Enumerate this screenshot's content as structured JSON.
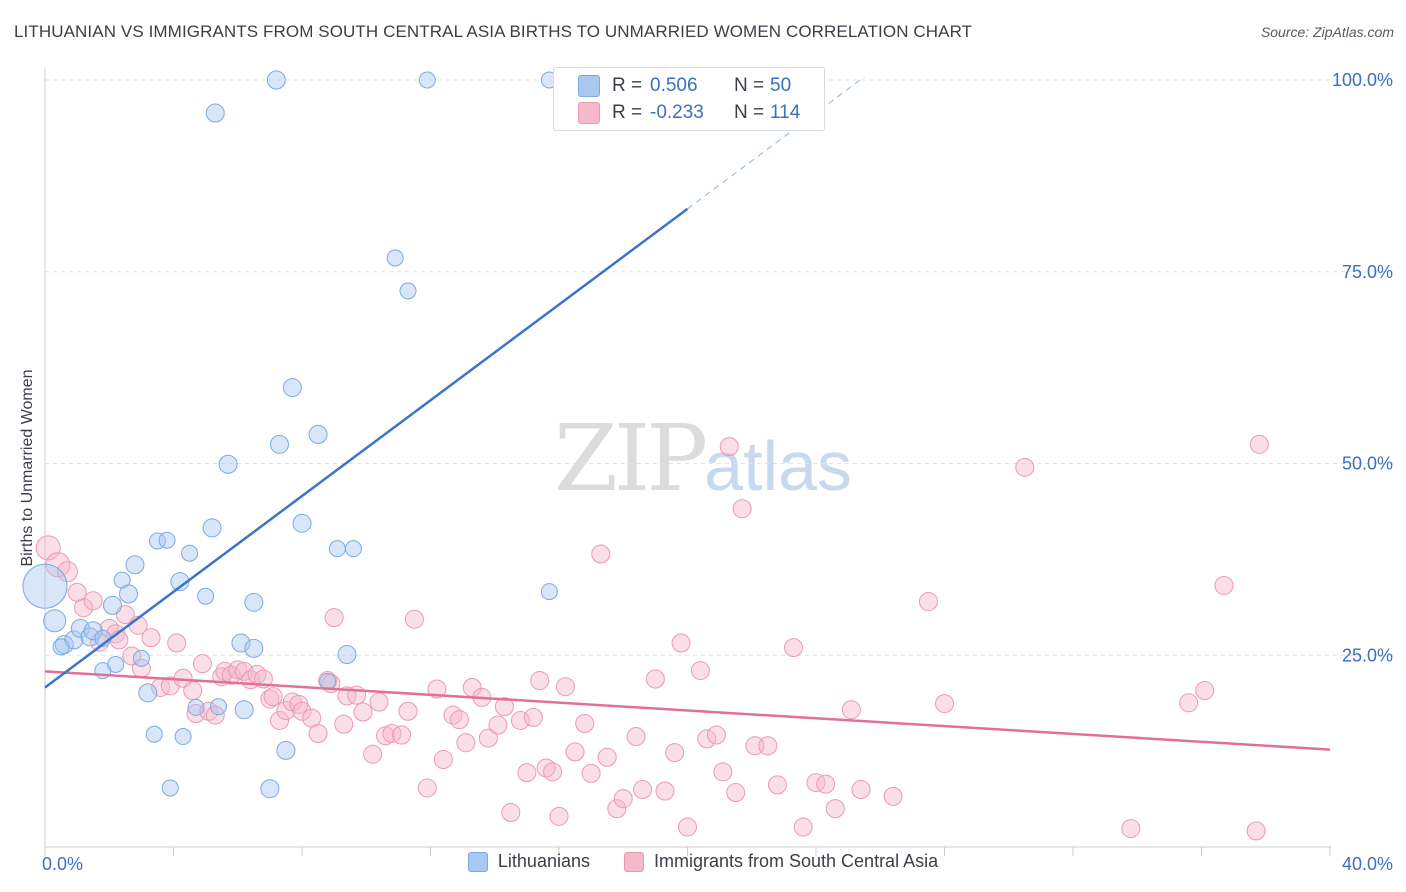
{
  "title": "LITHUANIAN VS IMMIGRANTS FROM SOUTH CENTRAL ASIA BIRTHS TO UNMARRIED WOMEN CORRELATION CHART",
  "source": "Source: ZipAtlas.com",
  "watermark": {
    "zip": "ZIP",
    "atlas": "atlas"
  },
  "correlation_box": {
    "rows": [
      {
        "r_label": "R =",
        "r_value": "0.506",
        "n_label": "N =",
        "n_value": "50",
        "color": "#a9c8f0"
      },
      {
        "r_label": "R =",
        "r_value": "-0.233",
        "n_label": "N =",
        "n_value": "114",
        "color": "#f5b9cb"
      }
    ]
  },
  "legend": {
    "items": [
      {
        "label": "Lithuanians",
        "color": "#a9c8f0"
      },
      {
        "label": "Immigrants from South Central Asia",
        "color": "#f5b9cb"
      }
    ]
  },
  "chart_data": {
    "type": "scatter",
    "title": "LITHUANIAN VS IMMIGRANTS FROM SOUTH CENTRAL ASIA BIRTHS TO UNMARRIED WOMEN CORRELATION CHART",
    "xlabel": "",
    "ylabel": "Births to Unmarried Women",
    "xlim": [
      0,
      40
    ],
    "ylim": [
      0,
      100
    ],
    "x_tick_labels": [
      "0.0%",
      "40.0%"
    ],
    "y_tick_labels": [
      "25.0%",
      "50.0%",
      "75.0%",
      "100.0%"
    ],
    "y_ticks": [
      25,
      50,
      75,
      100
    ],
    "grid": true,
    "legend_position": "bottom",
    "colors": {
      "blue_fill": "#a9c8f0",
      "blue_stroke": "#7aaae6",
      "blue_line": "#3b74c9",
      "pink_fill": "#f5b9cb",
      "pink_stroke": "#ec99b2",
      "pink_line": "#e0709a",
      "axis_text": "#3b6fc4"
    },
    "series": [
      {
        "name": "Lithuanians",
        "trend": {
          "x": [
            0,
            20
          ],
          "y": [
            20.8,
            83.2
          ],
          "dashed_extension_to": [
            25.5,
            100.4
          ]
        },
        "points": [
          [
            0.0,
            34.0,
            22
          ],
          [
            0.3,
            29.5,
            11
          ],
          [
            0.6,
            26.4,
            9
          ],
          [
            0.9,
            27.0,
            9
          ],
          [
            1.1,
            28.5,
            9
          ],
          [
            1.4,
            27.4,
            9
          ],
          [
            1.5,
            28.2,
            9
          ],
          [
            1.8,
            27.2,
            8
          ],
          [
            1.8,
            23.0,
            8
          ],
          [
            2.1,
            31.5,
            9
          ],
          [
            2.2,
            23.8,
            8
          ],
          [
            2.4,
            34.8,
            8
          ],
          [
            2.6,
            33.0,
            9
          ],
          [
            2.8,
            36.8,
            9
          ],
          [
            3.0,
            24.6,
            8
          ],
          [
            3.2,
            20.1,
            9
          ],
          [
            3.4,
            14.7,
            8
          ],
          [
            3.5,
            39.9,
            8
          ],
          [
            3.8,
            40.0,
            8
          ],
          [
            3.9,
            7.7,
            8
          ],
          [
            4.2,
            34.6,
            9
          ],
          [
            4.3,
            14.4,
            8
          ],
          [
            4.5,
            38.3,
            8
          ],
          [
            4.7,
            18.2,
            8
          ],
          [
            5.0,
            32.7,
            8
          ],
          [
            5.2,
            41.6,
            9
          ],
          [
            5.3,
            95.7,
            9
          ],
          [
            5.4,
            18.3,
            8
          ],
          [
            5.7,
            49.9,
            9
          ],
          [
            6.1,
            26.6,
            9
          ],
          [
            6.2,
            17.9,
            9
          ],
          [
            6.5,
            31.9,
            9
          ],
          [
            6.5,
            25.9,
            9
          ],
          [
            7.0,
            7.6,
            9
          ],
          [
            7.2,
            100.0,
            9
          ],
          [
            7.3,
            52.5,
            9
          ],
          [
            7.5,
            12.6,
            9
          ],
          [
            7.7,
            59.9,
            9
          ],
          [
            8.0,
            42.2,
            9
          ],
          [
            8.5,
            53.8,
            9
          ],
          [
            8.8,
            21.6,
            8
          ],
          [
            9.1,
            38.9,
            8
          ],
          [
            9.4,
            25.1,
            9
          ],
          [
            9.6,
            38.9,
            8
          ],
          [
            10.9,
            76.8,
            8
          ],
          [
            11.3,
            72.5,
            8
          ],
          [
            11.9,
            100.0,
            8
          ],
          [
            15.7,
            100.0,
            8
          ],
          [
            15.7,
            33.3,
            8
          ],
          [
            0.5,
            26.1,
            8
          ]
        ]
      },
      {
        "name": "Immigrants from South Central Asia",
        "trend": {
          "x": [
            0,
            40
          ],
          "y": [
            22.9,
            12.7
          ]
        },
        "points": [
          [
            0.1,
            39.0,
            12
          ],
          [
            0.4,
            36.8,
            12
          ],
          [
            0.7,
            35.9,
            10
          ],
          [
            1.0,
            33.2,
            9
          ],
          [
            1.2,
            31.2,
            9
          ],
          [
            1.5,
            32.1,
            9
          ],
          [
            1.7,
            26.7,
            9
          ],
          [
            2.0,
            28.5,
            9
          ],
          [
            2.2,
            27.8,
            9
          ],
          [
            2.3,
            27.0,
            9
          ],
          [
            2.5,
            30.3,
            9
          ],
          [
            2.7,
            24.9,
            9
          ],
          [
            2.9,
            28.9,
            9
          ],
          [
            3.0,
            23.3,
            9
          ],
          [
            3.3,
            27.3,
            9
          ],
          [
            3.6,
            20.8,
            9
          ],
          [
            3.9,
            21.0,
            9
          ],
          [
            4.1,
            26.6,
            9
          ],
          [
            4.3,
            22.0,
            9
          ],
          [
            4.6,
            20.4,
            9
          ],
          [
            4.7,
            17.4,
            9
          ],
          [
            4.9,
            23.9,
            9
          ],
          [
            5.1,
            17.7,
            9
          ],
          [
            5.3,
            17.2,
            9
          ],
          [
            5.5,
            22.2,
            9
          ],
          [
            5.6,
            22.9,
            9
          ],
          [
            5.8,
            22.4,
            9
          ],
          [
            6.0,
            23.1,
            9
          ],
          [
            6.2,
            22.9,
            9
          ],
          [
            6.4,
            21.8,
            9
          ],
          [
            6.6,
            22.5,
            9
          ],
          [
            6.8,
            21.9,
            9
          ],
          [
            7.0,
            19.3,
            9
          ],
          [
            7.1,
            19.6,
            9
          ],
          [
            7.3,
            16.5,
            9
          ],
          [
            7.5,
            17.8,
            9
          ],
          [
            7.7,
            18.9,
            9
          ],
          [
            7.9,
            18.6,
            9
          ],
          [
            8.0,
            17.7,
            9
          ],
          [
            8.3,
            16.8,
            9
          ],
          [
            8.5,
            14.8,
            9
          ],
          [
            8.8,
            21.7,
            9
          ],
          [
            8.9,
            21.3,
            9
          ],
          [
            9.0,
            29.9,
            9
          ],
          [
            9.3,
            16.0,
            9
          ],
          [
            9.4,
            19.7,
            9
          ],
          [
            9.7,
            19.8,
            9
          ],
          [
            9.9,
            17.6,
            9
          ],
          [
            10.2,
            12.1,
            9
          ],
          [
            10.4,
            18.9,
            9
          ],
          [
            10.6,
            14.5,
            9
          ],
          [
            10.8,
            14.8,
            9
          ],
          [
            11.1,
            14.6,
            9
          ],
          [
            11.3,
            17.7,
            9
          ],
          [
            11.5,
            29.7,
            9
          ],
          [
            11.9,
            7.7,
            9
          ],
          [
            12.2,
            20.6,
            9
          ],
          [
            12.4,
            11.4,
            9
          ],
          [
            12.7,
            17.2,
            9
          ],
          [
            12.9,
            16.6,
            9
          ],
          [
            13.1,
            13.6,
            9
          ],
          [
            13.3,
            20.8,
            9
          ],
          [
            13.6,
            19.5,
            9
          ],
          [
            13.8,
            14.2,
            9
          ],
          [
            14.1,
            15.9,
            9
          ],
          [
            14.3,
            18.3,
            9
          ],
          [
            14.5,
            4.5,
            9
          ],
          [
            14.8,
            16.5,
            9
          ],
          [
            15.0,
            9.7,
            9
          ],
          [
            15.2,
            16.9,
            9
          ],
          [
            15.4,
            21.7,
            9
          ],
          [
            15.6,
            10.3,
            9
          ],
          [
            15.8,
            9.8,
            9
          ],
          [
            16.0,
            4.0,
            9
          ],
          [
            16.2,
            20.9,
            9
          ],
          [
            16.5,
            12.4,
            9
          ],
          [
            16.8,
            16.1,
            9
          ],
          [
            17.0,
            9.6,
            9
          ],
          [
            17.3,
            38.2,
            9
          ],
          [
            17.5,
            11.7,
            9
          ],
          [
            17.8,
            5.0,
            9
          ],
          [
            18.0,
            6.3,
            9
          ],
          [
            18.4,
            14.4,
            9
          ],
          [
            18.6,
            7.5,
            9
          ],
          [
            19.0,
            21.9,
            9
          ],
          [
            19.3,
            7.3,
            9
          ],
          [
            19.6,
            12.3,
            9
          ],
          [
            19.8,
            26.6,
            9
          ],
          [
            20.0,
            2.6,
            9
          ],
          [
            20.4,
            23.0,
            9
          ],
          [
            20.6,
            14.1,
            9
          ],
          [
            20.9,
            14.6,
            9
          ],
          [
            21.1,
            9.8,
            9
          ],
          [
            21.3,
            52.2,
            9
          ],
          [
            21.5,
            7.1,
            9
          ],
          [
            21.7,
            44.1,
            9
          ],
          [
            22.1,
            13.2,
            9
          ],
          [
            22.5,
            13.2,
            9
          ],
          [
            22.8,
            8.1,
            9
          ],
          [
            23.3,
            26.0,
            9
          ],
          [
            23.6,
            2.6,
            9
          ],
          [
            24.0,
            8.4,
            9
          ],
          [
            24.3,
            8.2,
            9
          ],
          [
            24.6,
            5.0,
            9
          ],
          [
            25.1,
            17.9,
            9
          ],
          [
            25.4,
            7.5,
            9
          ],
          [
            26.4,
            6.6,
            9
          ],
          [
            27.5,
            32.0,
            9
          ],
          [
            28.0,
            18.7,
            9
          ],
          [
            30.5,
            49.5,
            9
          ],
          [
            33.8,
            2.4,
            9
          ],
          [
            35.6,
            18.8,
            9
          ],
          [
            36.1,
            20.4,
            9
          ],
          [
            36.7,
            34.1,
            9
          ],
          [
            37.7,
            2.1,
            9
          ],
          [
            37.8,
            52.5,
            9
          ]
        ]
      }
    ]
  }
}
